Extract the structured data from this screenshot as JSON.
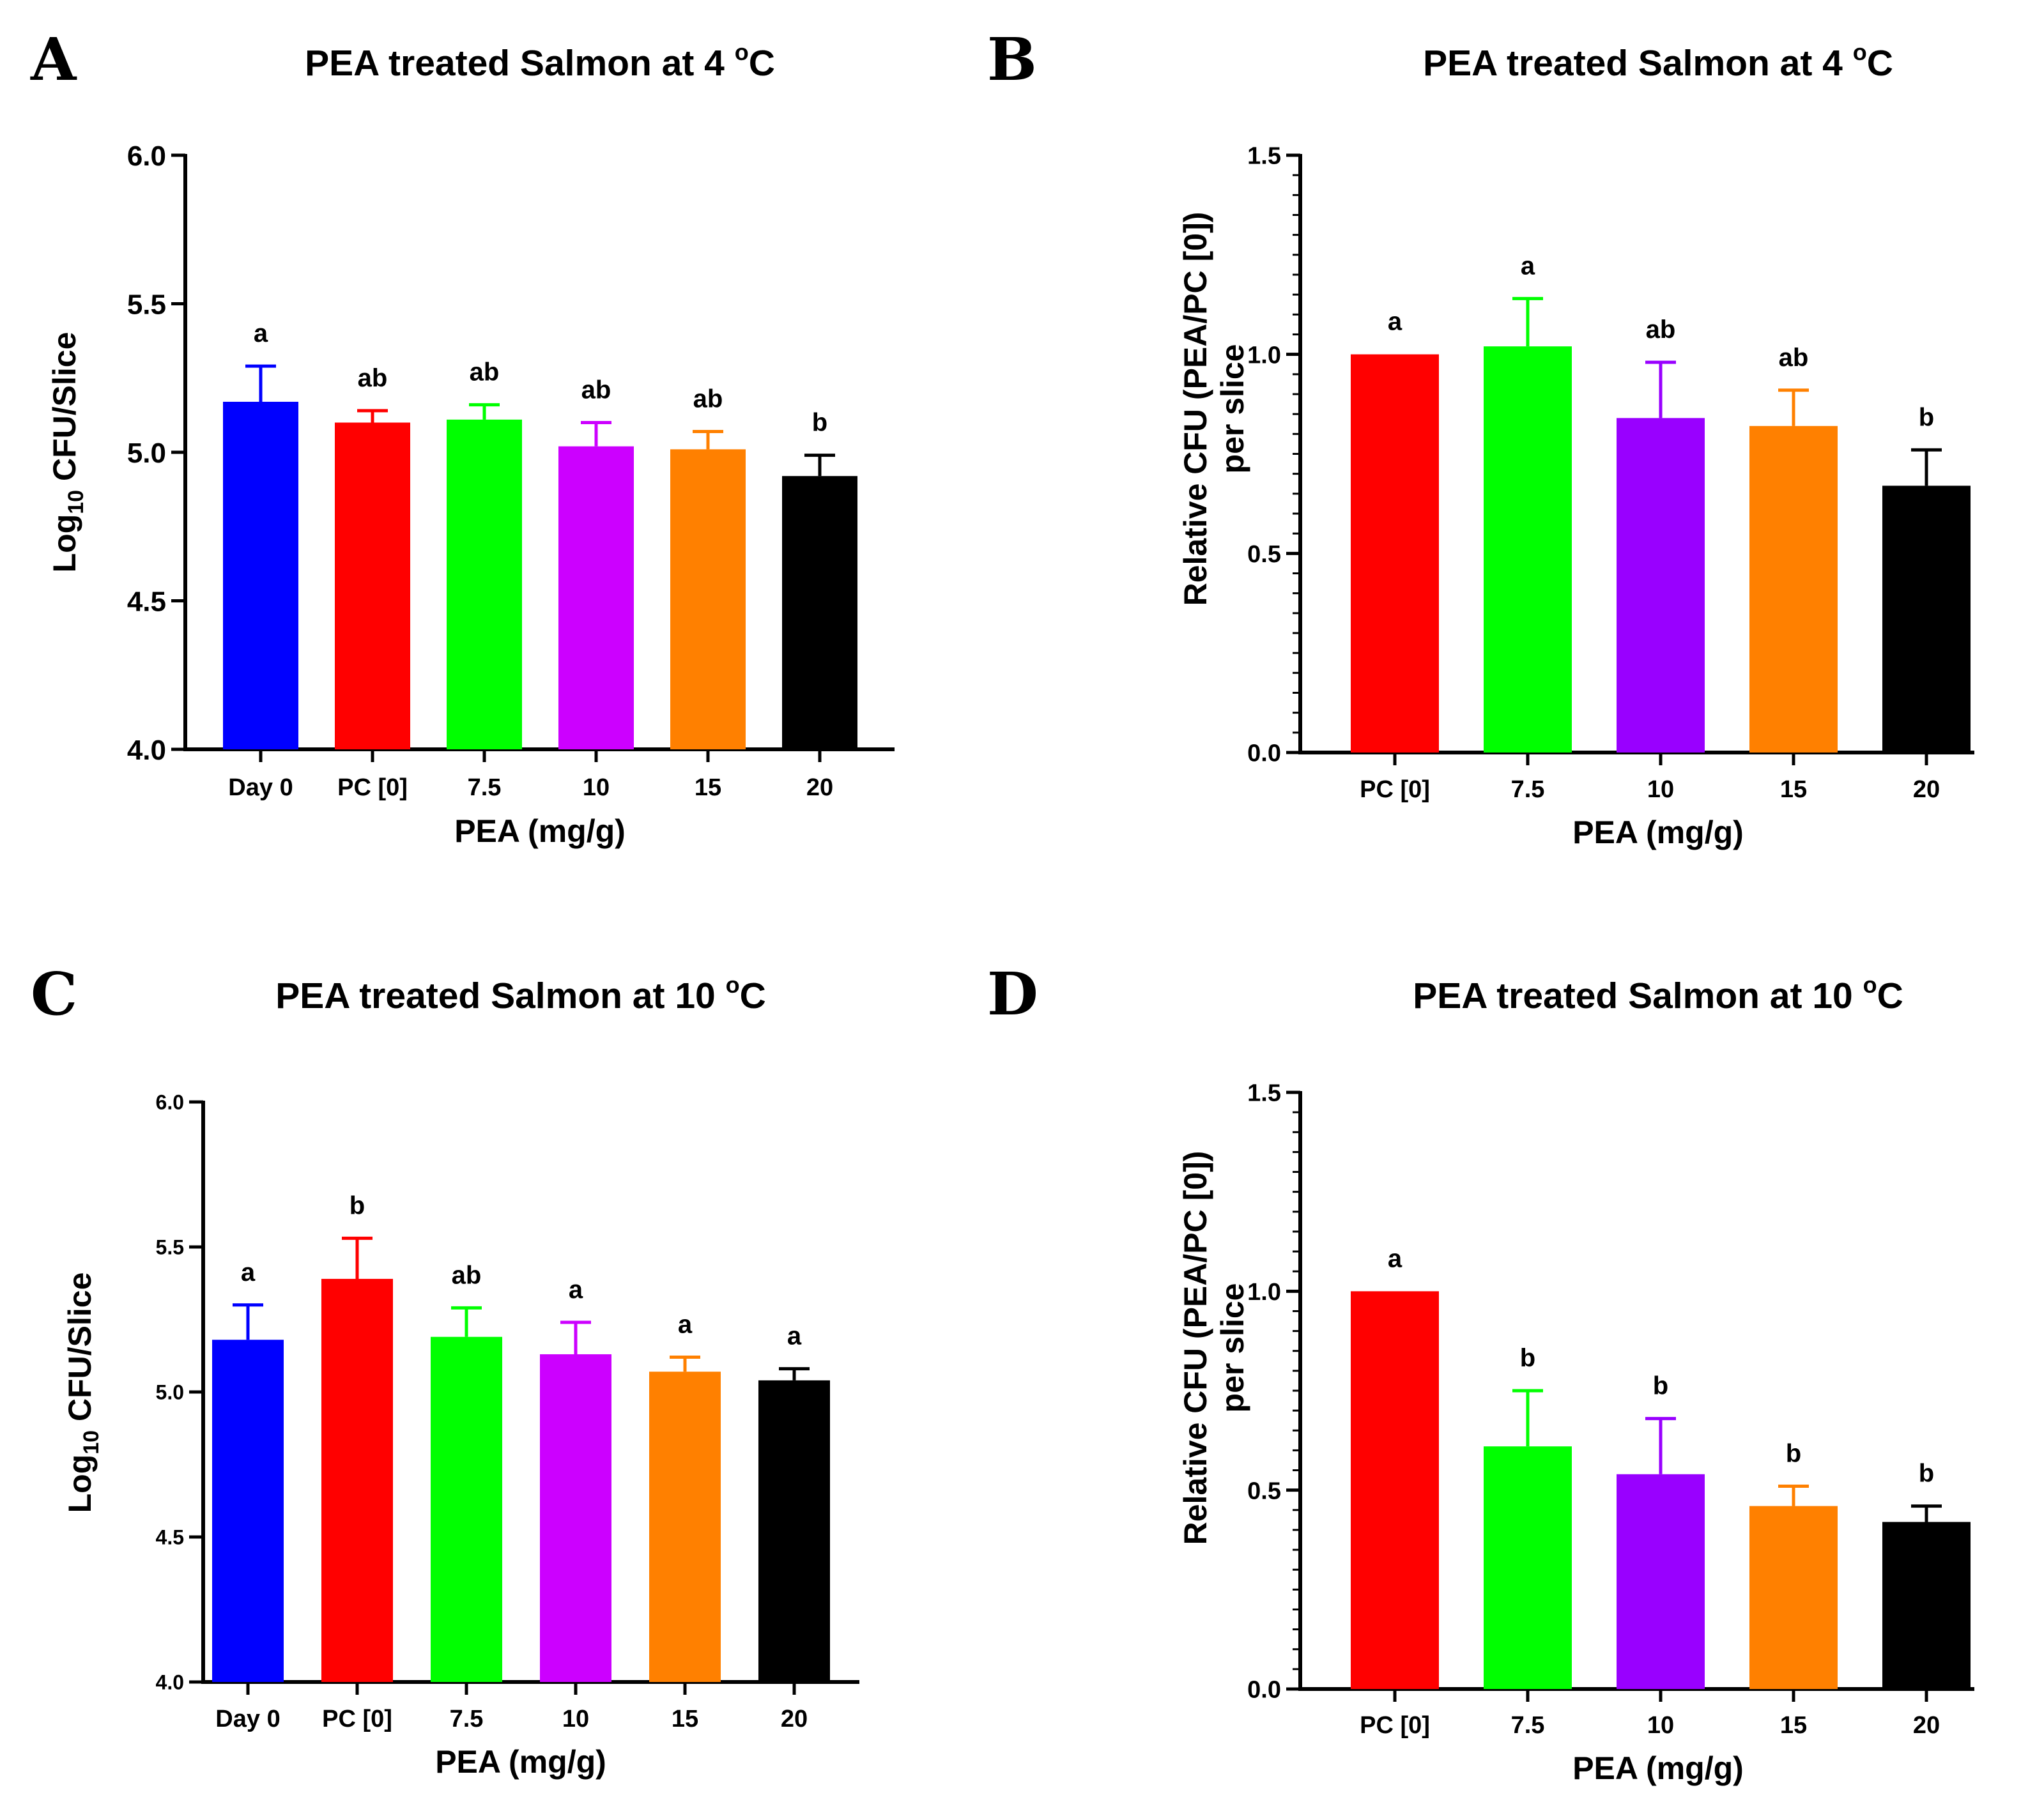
{
  "chart_data": [
    {
      "panel": "A",
      "type": "bar",
      "title": "PEA treated Salmon at 4 °C",
      "title_main": "PEA treated Salmon at 4 ",
      "title_deg": "o",
      "title_unit": "C",
      "xlabel": "PEA (mg/g)",
      "ylabel": "Log10 CFU/Slice",
      "ylabel_main": "Log",
      "ylabel_sub": "10",
      "ylabel_rest": " CFU/Slice",
      "ylim": [
        4.0,
        6.0
      ],
      "yticks": [
        "4.0",
        "4.5",
        "5.0",
        "5.5",
        "6.0"
      ],
      "categories": [
        "Day 0",
        "PC [0]",
        "7.5",
        "10",
        "15",
        "20"
      ],
      "values": [
        5.17,
        5.1,
        5.11,
        5.02,
        5.01,
        4.92
      ],
      "errors": [
        0.12,
        0.04,
        0.05,
        0.08,
        0.06,
        0.07
      ],
      "significance": [
        "a",
        "ab",
        "ab",
        "ab",
        "ab",
        "b"
      ],
      "colors": [
        "#0000ff",
        "#ff0000",
        "#00ff00",
        "#cc00ff",
        "#ff8000",
        "#000000"
      ]
    },
    {
      "panel": "B",
      "type": "bar",
      "title": "PEA treated Salmon at 4 °C",
      "title_main": "PEA treated Salmon at 4 ",
      "title_deg": "o",
      "title_unit": "C",
      "xlabel": "PEA (mg/g)",
      "ylabel_line1": "Relative CFU (PEA/PC [0])",
      "ylabel_line2": "per slice",
      "ylim": [
        0.0,
        1.5
      ],
      "yticks": [
        "0.0",
        "0.5",
        "1.0",
        "1.5"
      ],
      "categories": [
        "PC [0]",
        "7.5",
        "10",
        "15",
        "20"
      ],
      "values": [
        1.0,
        1.02,
        0.84,
        0.82,
        0.67
      ],
      "errors": [
        0.0,
        0.12,
        0.14,
        0.09,
        0.09
      ],
      "significance": [
        "a",
        "a",
        "ab",
        "ab",
        "b"
      ],
      "colors": [
        "#ff0000",
        "#00ff00",
        "#9900ff",
        "#ff8000",
        "#000000"
      ]
    },
    {
      "panel": "C",
      "type": "bar",
      "title": "PEA treated Salmon at 10 °C",
      "title_main": "PEA treated Salmon at 10 ",
      "title_deg": "o",
      "title_unit": "C",
      "xlabel": "PEA (mg/g)",
      "ylabel": "Log10 CFU/Slice",
      "ylabel_main": "Log",
      "ylabel_sub": "10",
      "ylabel_rest": " CFU/Slice",
      "ylim": [
        4.0,
        6.0
      ],
      "yticks": [
        "4.0",
        "4.5",
        "5.0",
        "5.5",
        "6.0"
      ],
      "categories": [
        "Day 0",
        "PC [0]",
        "7.5",
        "10",
        "15",
        "20"
      ],
      "values": [
        5.18,
        5.39,
        5.19,
        5.13,
        5.07,
        5.04
      ],
      "errors": [
        0.12,
        0.14,
        0.1,
        0.11,
        0.05,
        0.04
      ],
      "significance": [
        "a",
        "b",
        "ab",
        "a",
        "a",
        "a"
      ],
      "colors": [
        "#0000ff",
        "#ff0000",
        "#00ff00",
        "#cc00ff",
        "#ff8000",
        "#000000"
      ]
    },
    {
      "panel": "D",
      "type": "bar",
      "title": "PEA treated Salmon at 10 °C",
      "title_main": "PEA treated Salmon at 10 ",
      "title_deg": "o",
      "title_unit": "C",
      "xlabel": "PEA (mg/g)",
      "ylabel_line1": "Relative CFU (PEA/PC [0])",
      "ylabel_line2": "per slice",
      "ylim": [
        0.0,
        1.5
      ],
      "yticks": [
        "0.0",
        "0.5",
        "1.0",
        "1.5"
      ],
      "categories": [
        "PC [0]",
        "7.5",
        "10",
        "15",
        "20"
      ],
      "values": [
        1.0,
        0.61,
        0.54,
        0.46,
        0.42
      ],
      "errors": [
        0.0,
        0.14,
        0.14,
        0.05,
        0.04
      ],
      "significance": [
        "a",
        "b",
        "b",
        "b",
        "b"
      ],
      "colors": [
        "#ff0000",
        "#00ff00",
        "#9900ff",
        "#ff8000",
        "#000000"
      ]
    }
  ]
}
